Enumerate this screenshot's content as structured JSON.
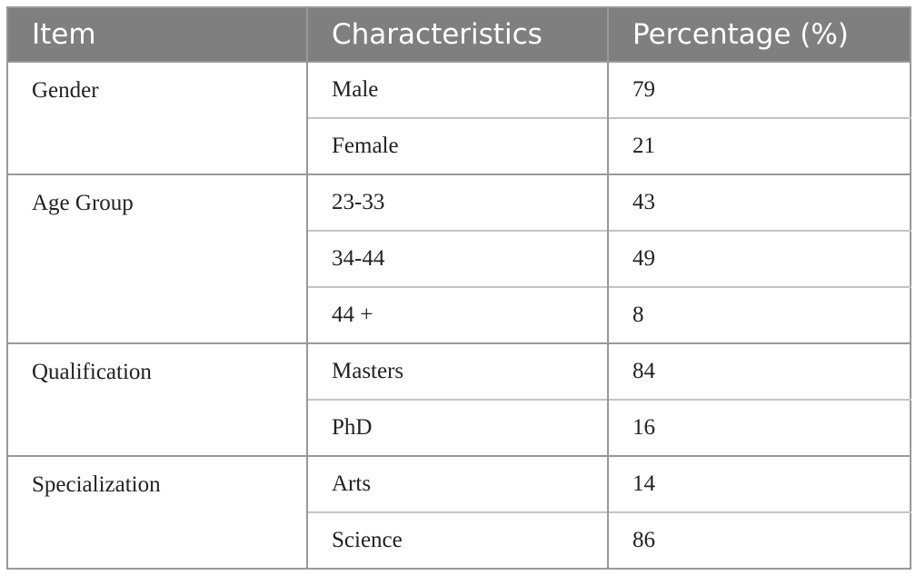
{
  "table": {
    "header": [
      "Item",
      "Characteristics",
      "Percentage (%)"
    ],
    "groups": [
      {
        "item": "Gender",
        "rows": [
          {
            "characteristic": "Male",
            "percentage": 79
          },
          {
            "characteristic": "Female",
            "percentage": 21
          }
        ]
      },
      {
        "item": "Age Group",
        "rows": [
          {
            "characteristic": "23-33",
            "percentage": 43
          },
          {
            "characteristic": "34-44",
            "percentage": 49
          },
          {
            "characteristic": "44 +",
            "percentage": 8
          }
        ]
      },
      {
        "item": "Qualification",
        "rows": [
          {
            "characteristic": "Masters",
            "percentage": 84
          },
          {
            "characteristic": "PhD",
            "percentage": 16
          }
        ]
      },
      {
        "item": "Specialization",
        "rows": [
          {
            "characteristic": "Arts",
            "percentage": 14
          },
          {
            "characteristic": "Science",
            "percentage": 86
          }
        ]
      }
    ]
  }
}
